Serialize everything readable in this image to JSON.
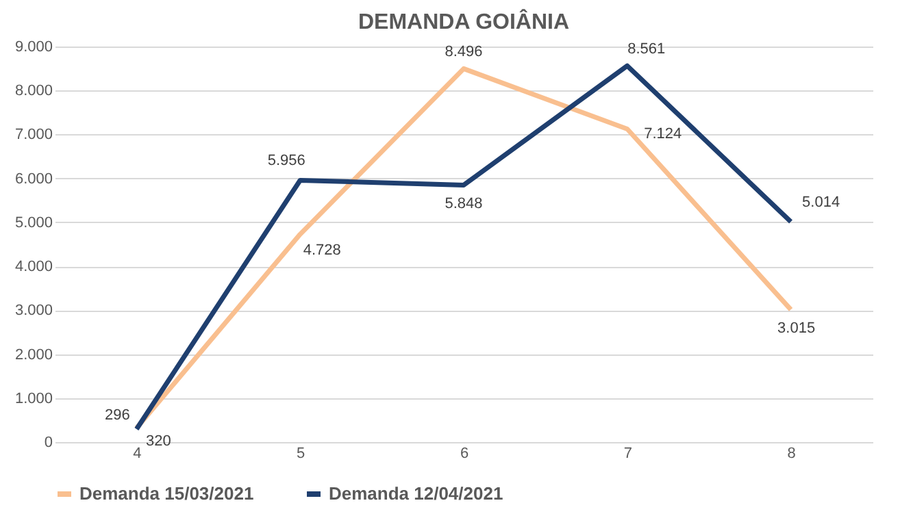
{
  "chart_data": {
    "type": "line",
    "title": "DEMANDA GOIÂNIA",
    "categories": [
      "4",
      "5",
      "6",
      "7",
      "8"
    ],
    "series": [
      {
        "name": "Demanda 15/03/2021",
        "color": "#f9bf8f",
        "values": [
          320,
          4728,
          8496,
          7124,
          3015
        ],
        "value_labels": [
          "320",
          "4.728",
          "8.496",
          "7.124",
          "3.015"
        ]
      },
      {
        "name": "Demanda 12/04/2021",
        "color": "#1f3f6f",
        "values": [
          296,
          5956,
          5848,
          8561,
          5014
        ],
        "value_labels": [
          "296",
          "5.956",
          "5.848",
          "8.561",
          "5.014"
        ]
      }
    ],
    "ylim": [
      0,
      9000
    ],
    "yticks": [
      0,
      {
        "value": 1000,
        "label": "1.000"
      },
      {
        "value": 2000,
        "label": "2.000"
      },
      {
        "value": 3000,
        "label": "3.000"
      },
      {
        "value": 4000,
        "label": "4.000"
      },
      {
        "value": 5000,
        "label": "5.000"
      },
      {
        "value": 6000,
        "label": "6.000"
      },
      {
        "value": 7000,
        "label": "7.000"
      },
      {
        "value": 8000,
        "label": "8.000"
      },
      {
        "value": 9000,
        "label": "9.000"
      }
    ],
    "grid": "y",
    "legend": "bottom",
    "marker": "none",
    "line_style": "solid"
  }
}
